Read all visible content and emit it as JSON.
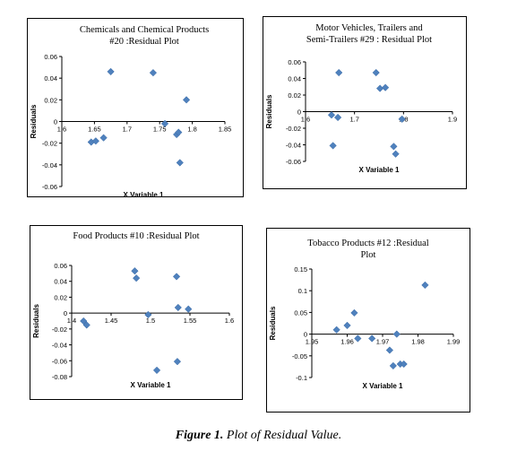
{
  "caption": {
    "bold": "Figure 1.",
    "text": " Plot of Residual Value."
  },
  "colors": {
    "marker": "#4f81bd",
    "axis": "#000000",
    "background": "#ffffff"
  },
  "chart_data": [
    {
      "type": "scatter",
      "title": [
        "Chemicals and Chemical Products",
        "#20 :Residual Plot"
      ],
      "xlabel": "X Variable 1",
      "ylabel": "Residuals",
      "xlim": [
        1.6,
        1.85
      ],
      "ylim": [
        -0.06,
        0.06
      ],
      "xticks": [
        "1.6",
        "1.65",
        "1.7",
        "1.75",
        "1.8",
        "1.85"
      ],
      "yticks": [
        "0.06",
        "0.04",
        "0.02",
        "0",
        "-0.02",
        "-0.04",
        "-0.06"
      ],
      "grid": false,
      "x": [
        1.645,
        1.652,
        1.664,
        1.675,
        1.74,
        1.758,
        1.776,
        1.779,
        1.791,
        1.781
      ],
      "y": [
        -0.019,
        -0.018,
        -0.015,
        0.046,
        0.045,
        -0.002,
        -0.012,
        -0.01,
        0.02,
        -0.038
      ]
    },
    {
      "type": "scatter",
      "title": [
        "Motor Vehicles, Trailers and",
        "Semi-Trailers #29 : Residual Plot"
      ],
      "xlabel": "X Variable 1",
      "ylabel": "Residuals",
      "xlim": [
        1.6,
        1.9
      ],
      "ylim": [
        -0.06,
        0.06
      ],
      "xticks": [
        "1.6",
        "1.7",
        "1.8",
        "1.9"
      ],
      "yticks": [
        "0.06",
        "0.04",
        "0.02",
        "0",
        "-0.02",
        "-0.04",
        "-0.06"
      ],
      "grid": false,
      "x": [
        1.653,
        1.656,
        1.666,
        1.668,
        1.744,
        1.752,
        1.763,
        1.784,
        1.78,
        1.797
      ],
      "y": [
        -0.004,
        -0.041,
        -0.007,
        0.047,
        0.047,
        0.028,
        0.029,
        -0.051,
        -0.042,
        -0.009
      ]
    },
    {
      "type": "scatter",
      "title": [
        "Food Products #10 :Residual Plot"
      ],
      "xlabel": "X Variable 1",
      "ylabel": "Residuals",
      "xlim": [
        1.4,
        1.6
      ],
      "ylim": [
        -0.08,
        0.06
      ],
      "xticks": [
        "1.4",
        "1.45",
        "1.5",
        "1.55",
        "1.6"
      ],
      "yticks": [
        "0.06",
        "0.04",
        "0.02",
        "0",
        "-0.02",
        "-0.04",
        "-0.06",
        "-0.08"
      ],
      "grid": false,
      "x": [
        1.415,
        1.419,
        1.48,
        1.482,
        1.497,
        1.508,
        1.533,
        1.535,
        1.548,
        1.534
      ],
      "y": [
        -0.01,
        -0.015,
        0.053,
        0.044,
        -0.002,
        -0.072,
        0.046,
        0.007,
        0.005,
        -0.061
      ]
    },
    {
      "type": "scatter",
      "title": [
        "Tobacco Products #12 :Residual",
        "Plot"
      ],
      "xlabel": "X Variable 1",
      "ylabel": "Residuals",
      "xlim": [
        1.95,
        1.99
      ],
      "ylim": [
        -0.1,
        0.15
      ],
      "xticks": [
        "1.95",
        "1.96",
        "1.97",
        "1.98",
        "1.99"
      ],
      "yticks": [
        "0.15",
        "0.1",
        "0.05",
        "0",
        "-0.05",
        "-0.1"
      ],
      "grid": false,
      "x": [
        1.957,
        1.96,
        1.962,
        1.963,
        1.967,
        1.972,
        1.973,
        1.974,
        1.975,
        1.976,
        1.982
      ],
      "y": [
        0.01,
        0.02,
        0.049,
        -0.01,
        -0.01,
        -0.037,
        -0.073,
        0,
        -0.069,
        -0.069,
        0.113
      ]
    }
  ]
}
